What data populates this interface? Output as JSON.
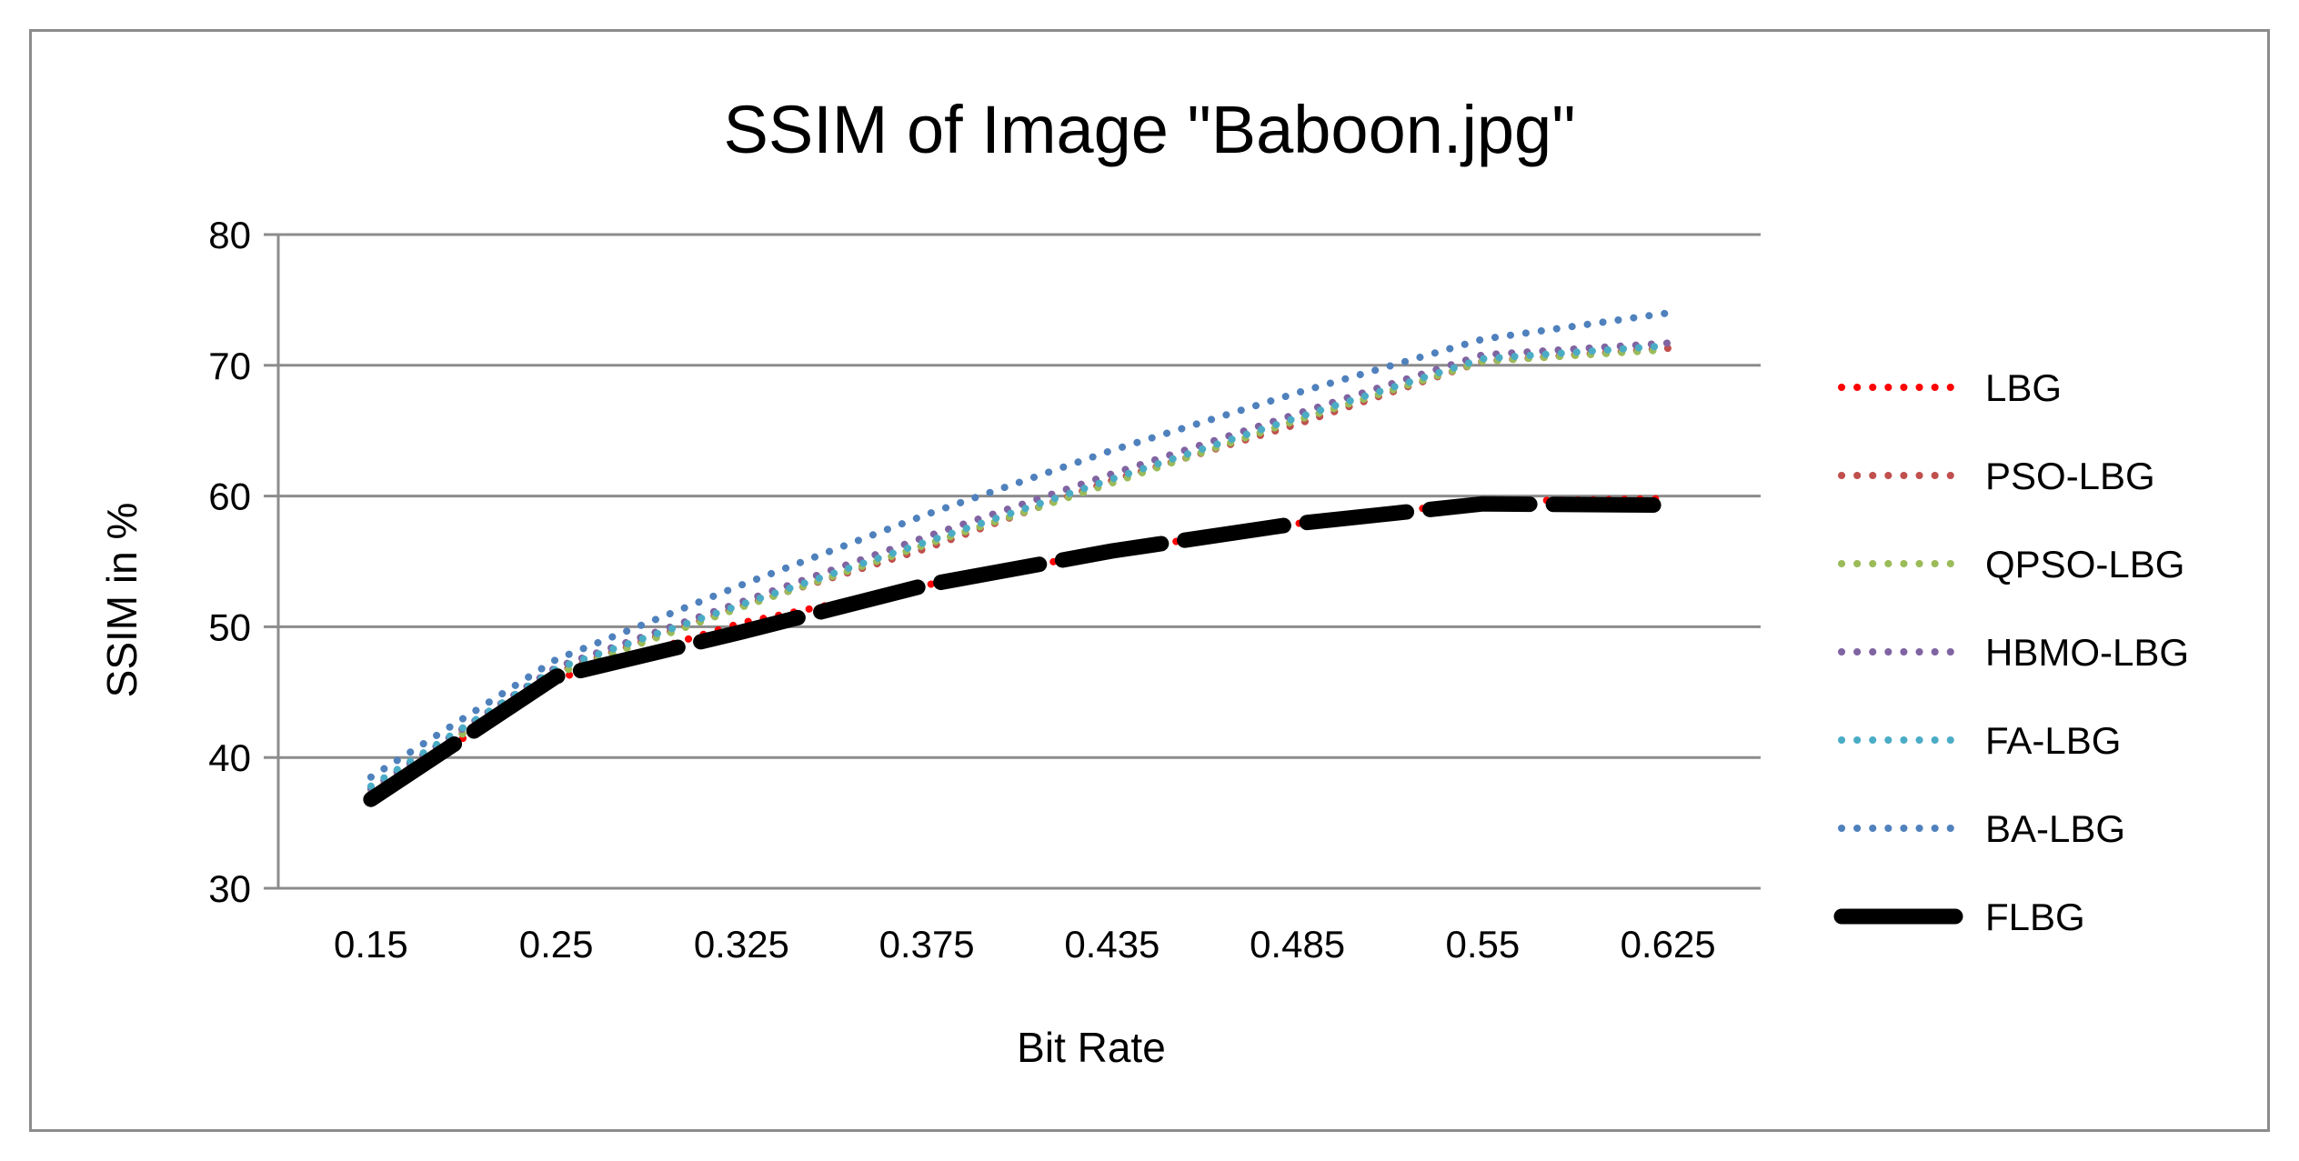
{
  "chart_data": {
    "type": "line",
    "title": "SSIM of Image \"Baboon.jpg\"",
    "xlabel": "Bit Rate",
    "ylabel": "SSIM in %",
    "categories": [
      "0.15",
      "0.25",
      "0.325",
      "0.375",
      "0.435",
      "0.485",
      "0.55",
      "0.625"
    ],
    "ylim": [
      30,
      80
    ],
    "yticks": [
      30,
      40,
      50,
      60,
      70,
      80
    ],
    "grid": true,
    "legend_position": "right",
    "series": [
      {
        "name": "LBG",
        "color": "#ff0000",
        "style": "dotted",
        "values": [
          37.0,
          46.0,
          50.3,
          53.2,
          55.8,
          57.9,
          59.6,
          59.8
        ]
      },
      {
        "name": "PSO-LBG",
        "color": "#c0504d",
        "style": "dotted",
        "values": [
          37.3,
          46.5,
          51.6,
          56.0,
          61.2,
          65.5,
          70.3,
          71.3
        ]
      },
      {
        "name": "QPSO-LBG",
        "color": "#9bbb59",
        "style": "dotted",
        "values": [
          37.3,
          46.4,
          51.5,
          56.3,
          61.0,
          65.8,
          70.3,
          71.2
        ]
      },
      {
        "name": "HBMO-LBG",
        "color": "#8064a2",
        "style": "dotted",
        "values": [
          37.6,
          46.9,
          51.9,
          56.9,
          61.7,
          66.3,
          70.8,
          71.7
        ]
      },
      {
        "name": "FA-LBG",
        "color": "#4bacc6",
        "style": "dotted",
        "values": [
          37.8,
          46.8,
          51.7,
          56.5,
          61.3,
          66.0,
          70.5,
          71.5
        ]
      },
      {
        "name": "BA-LBG",
        "color": "#4f81bd",
        "style": "dotted",
        "values": [
          38.5,
          47.5,
          53.2,
          58.6,
          63.5,
          67.9,
          72.0,
          74.0
        ]
      },
      {
        "name": "FLBG",
        "color": "#000000",
        "style": "dashed",
        "values": [
          36.8,
          46.2,
          49.6,
          53.2,
          55.8,
          57.9,
          59.4,
          59.3
        ]
      }
    ]
  }
}
